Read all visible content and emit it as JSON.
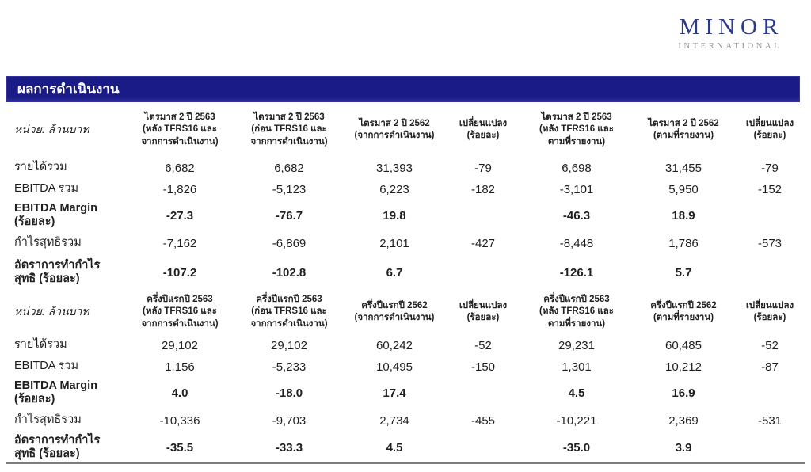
{
  "logo": {
    "brand": "MINOR",
    "subtitle": "INTERNATIONAL"
  },
  "title_bar": {
    "text": "ผลการดำเนินงาน"
  },
  "colors": {
    "title_bar_navy": "#1b1b87",
    "logo_navy": "#2c3a8a",
    "logo_gray": "#8c9094",
    "rule_gray": "#7d7d7d"
  },
  "table": {
    "unit_label": "หน่วย: ล้านบาท",
    "sections": [
      {
        "columns": [
          "ไตรมาส 2 ปี 2563\n(หลัง TFRS16 และ\nจากการดำเนินงาน)",
          "ไตรมาส 2 ปี 2563\n(ก่อน TFRS16 และ\nจากการดำเนินงาน)",
          "ไตรมาส 2 ปี 2562\n(จากการดำเนินงาน)",
          "เปลี่ยนแปลง\n(ร้อยละ)",
          "ไตรมาส 2 ปี 2563\n(หลัง TFRS16 และ\nตามที่รายงาน)",
          "ไตรมาส 2 ปี 2562\n(ตามที่รายงาน)",
          "เปลี่ยนแปลง\n(ร้อยละ)"
        ],
        "rows": [
          {
            "label": "รายได้รวม",
            "bold": false,
            "values": [
              "6,682",
              "6,682",
              "31,393",
              "-79",
              "6,698",
              "31,455",
              "-79"
            ]
          },
          {
            "label": "EBITDA รวม",
            "bold": false,
            "values": [
              "-1,826",
              "-5,123",
              "6,223",
              "-182",
              "-3,101",
              "5,950",
              "-152"
            ]
          },
          {
            "label": "EBITDA Margin\n(ร้อยละ)",
            "bold": true,
            "values": [
              "-27.3",
              "-76.7",
              "19.8",
              "",
              "-46.3",
              "18.9",
              ""
            ]
          },
          {
            "label": "กำไรสุทธิรวม",
            "bold": false,
            "values": [
              "-7,162",
              "-6,869",
              "2,101",
              "-427",
              "-8,448",
              "1,786",
              "-573"
            ]
          },
          {
            "label": "อัตราการทำกำไร\nสุทธิ (ร้อยละ)",
            "bold": true,
            "values": [
              "-107.2",
              "-102.8",
              "6.7",
              "",
              "-126.1",
              "5.7",
              ""
            ]
          }
        ]
      },
      {
        "columns": [
          "ครึ่งปีแรกปี 2563\n(หลัง TFRS16 และ\nจากการดำเนินงาน)",
          "ครึ่งปีแรกปี 2563\n(ก่อน TFRS16 และ\nจากการดำเนินงาน)",
          "ครึ่งปีแรกปี 2562\n(จากการดำเนินงาน)",
          "เปลี่ยนแปลง\n(ร้อยละ)",
          "ครึ่งปีแรกปี 2563\n(หลัง TFRS16 และ\nตามที่รายงาน)",
          "ครึ่งปีแรกปี 2562\n(ตามที่รายงาน)",
          "เปลี่ยนแปลง\n(ร้อยละ)"
        ],
        "rows": [
          {
            "label": "รายได้รวม",
            "bold": false,
            "values": [
              "29,102",
              "29,102",
              "60,242",
              "-52",
              "29,231",
              "60,485",
              "-52"
            ]
          },
          {
            "label": "EBITDA รวม",
            "bold": false,
            "values": [
              "1,156",
              "-5,233",
              "10,495",
              "-150",
              "1,301",
              "10,212",
              "-87"
            ]
          },
          {
            "label": "EBITDA Margin\n(ร้อยละ)",
            "bold": true,
            "values": [
              "4.0",
              "-18.0",
              "17.4",
              "",
              "4.5",
              "16.9",
              ""
            ]
          },
          {
            "label": "กำไรสุทธิรวม",
            "bold": false,
            "values": [
              "-10,336",
              "-9,703",
              "2,734",
              "-455",
              "-10,221",
              "2,369",
              "-531"
            ]
          },
          {
            "label": "อัตราการทำกำไร\nสุทธิ (ร้อยละ)",
            "bold": true,
            "values": [
              "-35.5",
              "-33.3",
              "4.5",
              "",
              "-35.0",
              "3.9",
              ""
            ]
          }
        ]
      }
    ]
  }
}
